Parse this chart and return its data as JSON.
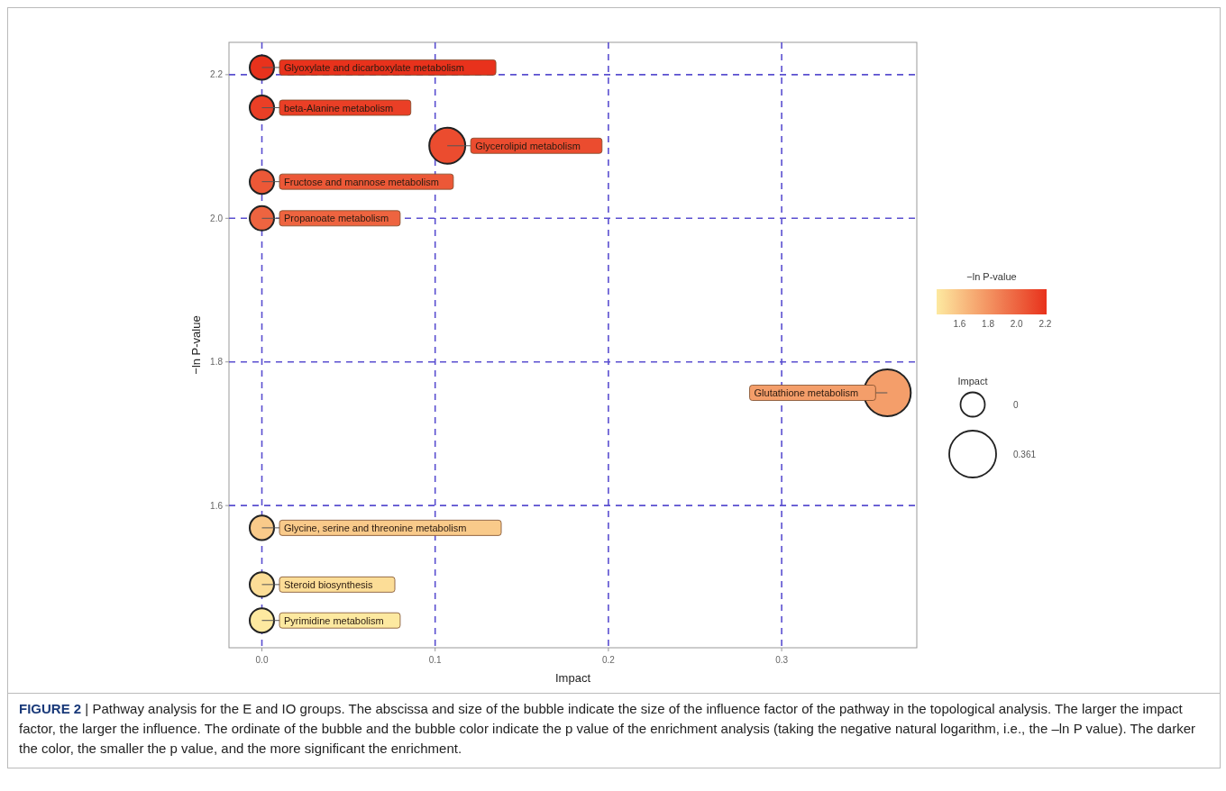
{
  "chart_data": {
    "type": "bubble",
    "xlabel": "Impact",
    "ylabel": "−ln P-value",
    "clabel": "−ln P-value",
    "legend_title": "Impact",
    "xlim": [
      -0.019,
      0.378
    ],
    "ylim": [
      1.402,
      2.245
    ],
    "xticks": [
      {
        "value": 0,
        "label": "0.0"
      },
      0.1,
      0.2,
      0.3
    ],
    "yticks": [
      1.6,
      1.8,
      {
        "value": 2,
        "label": "2.0"
      },
      2.2
    ],
    "clim": [
      1.44,
      2.21
    ],
    "cticks": [
      1.6,
      1.8,
      {
        "value": 2,
        "label": "2.0"
      },
      2.2
    ],
    "size_legend": [
      {
        "value": 0.27,
        "label": "0"
      },
      {
        "value": 1,
        "label": "0.361"
      }
    ],
    "grid": true,
    "marker": "circle",
    "series": [
      {
        "x": [
          0,
          0,
          0.107,
          0,
          0,
          0.361,
          0,
          0,
          0
        ],
        "values": [
          2.21,
          2.154,
          2.101,
          2.051,
          2.0,
          1.757,
          1.569,
          1.49,
          1.44
        ],
        "sizes": [
          0.27,
          0.27,
          0.59,
          0.27,
          0.27,
          1,
          0.27,
          0.27,
          0.27
        ],
        "cvalues": [
          2.21,
          2.154,
          2.101,
          2.051,
          2.0,
          1.757,
          1.569,
          1.49,
          1.44
        ]
      }
    ],
    "annotations": [
      {
        "text": "Glyoxylate and dicarboxylate metabolism",
        "x": 0,
        "y": 2.21
      },
      {
        "text": "beta-Alanine metabolism",
        "x": 0,
        "y": 2.154
      },
      {
        "text": "Glycerolipid metabolism",
        "x": 0.107,
        "y": 2.101
      },
      {
        "text": "Fructose and mannose metabolism",
        "x": 0,
        "y": 2.051
      },
      {
        "text": "Propanoate metabolism",
        "x": 0,
        "y": 2.0
      },
      {
        "text": "Glutathione metabolism",
        "x": 0.361,
        "y": 1.757
      },
      {
        "text": "Glycine, serine and threonine metabolism",
        "x": 0,
        "y": 1.569
      },
      {
        "text": "Steroid biosynthesis",
        "x": 0,
        "y": 1.49
      },
      {
        "text": "Pyrimidine metabolism",
        "x": 0,
        "y": 1.44
      },
      "FIGURE 2 | Pathway analysis for the E and IO groups. The abscissa and size of the bubble indicate the size of the influence factor of the pathway in the topological analysis. The larger the impact factor, the larger the influence. The ordinate of the bubble and the bubble color indicate the p value of the enrichment analysis (taking the negative natural logarithm, i.e., the –ln P value). The darker the color, the smaller the p value, and the more significant the enrichment."
    ]
  }
}
